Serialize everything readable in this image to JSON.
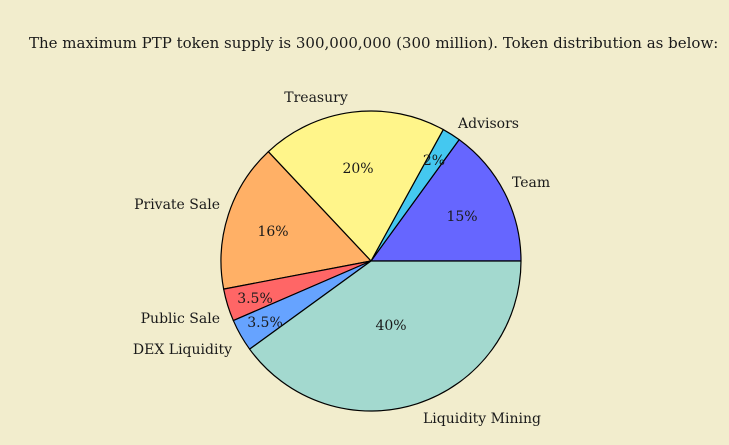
{
  "intro_text": "The maximum PTP token supply is 300,000,000 (300 million). Token distribution as below:",
  "chart_data": {
    "type": "pie",
    "title": "",
    "direction": "counterclockwise from 3 o'clock",
    "slices": [
      {
        "label": "Team",
        "value": 15,
        "value_label": "15%",
        "color": "#6666ff"
      },
      {
        "label": "Advisors",
        "value": 2,
        "value_label": "2%",
        "color": "#44c8f0"
      },
      {
        "label": "Treasury",
        "value": 20,
        "value_label": "20%",
        "color": "#fff58a"
      },
      {
        "label": "Private Sale",
        "value": 16,
        "value_label": "16%",
        "color": "#ffb066"
      },
      {
        "label": "Public Sale",
        "value": 3.5,
        "value_label": "3.5%",
        "color": "#ff6666"
      },
      {
        "label": "DEX Liquidity",
        "value": 3.5,
        "value_label": "3.5%",
        "color": "#66a3ff"
      },
      {
        "label": "Liquidity Mining",
        "value": 40,
        "value_label": "40%",
        "color": "#a3d9cf"
      }
    ]
  }
}
